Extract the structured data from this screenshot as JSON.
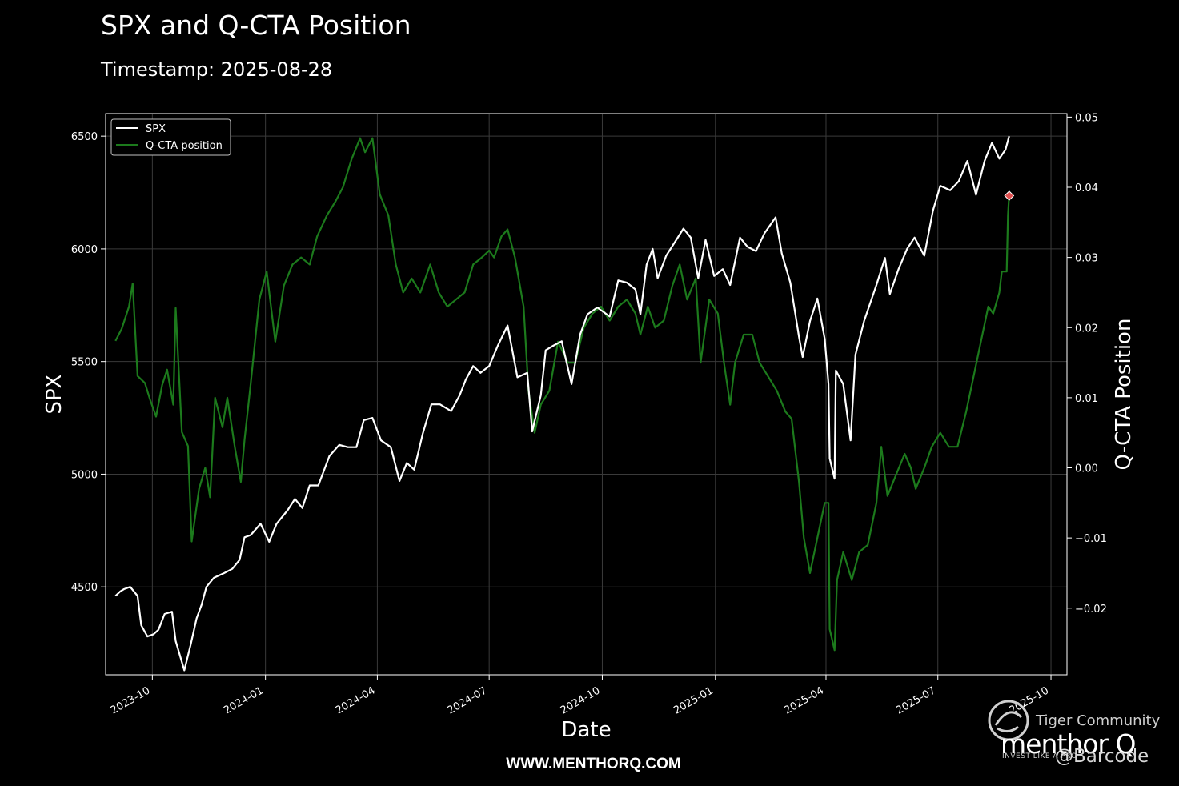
{
  "header": {
    "title": "SPX and Q-CTA Position",
    "subtitle": "Timestamp: 2025-08-28"
  },
  "footer": {
    "url": "WWW.MENTHORQ.COM"
  },
  "watermark": {
    "community": "Tiger Community",
    "brand": "menthor Q",
    "tagline": "INVEST LIKE A PRO",
    "handle": "@Barcode",
    "icon": "tiger-logo-icon"
  },
  "colors": {
    "spx": "#ffffff",
    "cta": "#1c7a1c",
    "marker": "#e05050",
    "background": "#000000"
  },
  "chart_data": {
    "type": "line",
    "xlabel": "Date",
    "ylabel": "SPX",
    "y2label": "Q-CTA Position",
    "xlim": [
      "2023-08-24",
      "2025-10-14"
    ],
    "ylim": [
      4110,
      6600
    ],
    "y2lim": [
      -0.0295,
      0.0505
    ],
    "grid": true,
    "legend": {
      "placement": "top-left",
      "entries": [
        "SPX",
        "Q-CTA position"
      ]
    },
    "x_ticks": [
      "2023-10",
      "2024-01",
      "2024-04",
      "2024-07",
      "2024-10",
      "2025-01",
      "2025-04",
      "2025-07",
      "2025-10"
    ],
    "y_ticks": [
      4500,
      5000,
      5500,
      6000,
      6500
    ],
    "y2_ticks": [
      -0.02,
      -0.01,
      0.0,
      0.01,
      0.02,
      0.03,
      0.04,
      0.05
    ],
    "y2_tick_labels": [
      "−0.02",
      "−0.01",
      "0.00",
      "0.01",
      "0.02",
      "0.03",
      "0.04",
      "0.05"
    ],
    "series": [
      {
        "name": "SPX",
        "axis": "left",
        "points": [
          [
            "2023-09-01",
            4460
          ],
          [
            "2023-09-05",
            4480
          ],
          [
            "2023-09-08",
            4490
          ],
          [
            "2023-09-13",
            4500
          ],
          [
            "2023-09-19",
            4460
          ],
          [
            "2023-09-22",
            4330
          ],
          [
            "2023-09-27",
            4280
          ],
          [
            "2023-10-02",
            4290
          ],
          [
            "2023-10-06",
            4310
          ],
          [
            "2023-10-11",
            4380
          ],
          [
            "2023-10-17",
            4390
          ],
          [
            "2023-10-20",
            4260
          ],
          [
            "2023-10-27",
            4130
          ],
          [
            "2023-11-01",
            4240
          ],
          [
            "2023-11-06",
            4360
          ],
          [
            "2023-11-10",
            4420
          ],
          [
            "2023-11-14",
            4500
          ],
          [
            "2023-11-20",
            4540
          ],
          [
            "2023-11-28",
            4560
          ],
          [
            "2023-12-05",
            4580
          ],
          [
            "2023-12-11",
            4620
          ],
          [
            "2023-12-15",
            4720
          ],
          [
            "2023-12-20",
            4730
          ],
          [
            "2023-12-28",
            4780
          ],
          [
            "2024-01-04",
            4700
          ],
          [
            "2024-01-10",
            4780
          ],
          [
            "2024-01-19",
            4840
          ],
          [
            "2024-01-25",
            4890
          ],
          [
            "2024-01-31",
            4850
          ],
          [
            "2024-02-06",
            4950
          ],
          [
            "2024-02-13",
            4950
          ],
          [
            "2024-02-22",
            5080
          ],
          [
            "2024-03-01",
            5130
          ],
          [
            "2024-03-08",
            5120
          ],
          [
            "2024-03-15",
            5120
          ],
          [
            "2024-03-21",
            5240
          ],
          [
            "2024-03-28",
            5250
          ],
          [
            "2024-04-04",
            5150
          ],
          [
            "2024-04-12",
            5120
          ],
          [
            "2024-04-19",
            4970
          ],
          [
            "2024-04-25",
            5050
          ],
          [
            "2024-05-01",
            5020
          ],
          [
            "2024-05-08",
            5180
          ],
          [
            "2024-05-15",
            5310
          ],
          [
            "2024-05-22",
            5310
          ],
          [
            "2024-05-31",
            5280
          ],
          [
            "2024-06-07",
            5350
          ],
          [
            "2024-06-12",
            5420
          ],
          [
            "2024-06-18",
            5480
          ],
          [
            "2024-06-24",
            5450
          ],
          [
            "2024-07-01",
            5480
          ],
          [
            "2024-07-08",
            5570
          ],
          [
            "2024-07-16",
            5660
          ],
          [
            "2024-07-24",
            5430
          ],
          [
            "2024-08-01",
            5450
          ],
          [
            "2024-08-05",
            5190
          ],
          [
            "2024-08-12",
            5350
          ],
          [
            "2024-08-16",
            5550
          ],
          [
            "2024-08-22",
            5570
          ],
          [
            "2024-08-29",
            5590
          ],
          [
            "2024-09-06",
            5400
          ],
          [
            "2024-09-13",
            5620
          ],
          [
            "2024-09-19",
            5710
          ],
          [
            "2024-09-27",
            5740
          ],
          [
            "2024-10-07",
            5700
          ],
          [
            "2024-10-14",
            5860
          ],
          [
            "2024-10-21",
            5850
          ],
          [
            "2024-10-28",
            5820
          ],
          [
            "2024-11-01",
            5710
          ],
          [
            "2024-11-06",
            5930
          ],
          [
            "2024-11-11",
            6000
          ],
          [
            "2024-11-15",
            5870
          ],
          [
            "2024-11-22",
            5970
          ],
          [
            "2024-11-29",
            6030
          ],
          [
            "2024-12-06",
            6090
          ],
          [
            "2024-12-12",
            6050
          ],
          [
            "2024-12-18",
            5870
          ],
          [
            "2024-12-24",
            6040
          ],
          [
            "2024-12-31",
            5880
          ],
          [
            "2025-01-07",
            5910
          ],
          [
            "2025-01-13",
            5840
          ],
          [
            "2025-01-21",
            6050
          ],
          [
            "2025-01-27",
            6010
          ],
          [
            "2025-02-03",
            5990
          ],
          [
            "2025-02-10",
            6070
          ],
          [
            "2025-02-19",
            6140
          ],
          [
            "2025-02-24",
            5980
          ],
          [
            "2025-03-03",
            5850
          ],
          [
            "2025-03-10",
            5610
          ],
          [
            "2025-03-13",
            5520
          ],
          [
            "2025-03-19",
            5680
          ],
          [
            "2025-03-25",
            5780
          ],
          [
            "2025-03-31",
            5600
          ],
          [
            "2025-04-03",
            5400
          ],
          [
            "2025-04-04",
            5070
          ],
          [
            "2025-04-08",
            4980
          ],
          [
            "2025-04-09",
            5460
          ],
          [
            "2025-04-15",
            5400
          ],
          [
            "2025-04-21",
            5150
          ],
          [
            "2025-04-25",
            5530
          ],
          [
            "2025-05-02",
            5680
          ],
          [
            "2025-05-12",
            5840
          ],
          [
            "2025-05-19",
            5960
          ],
          [
            "2025-05-23",
            5800
          ],
          [
            "2025-05-30",
            5910
          ],
          [
            "2025-06-06",
            6000
          ],
          [
            "2025-06-12",
            6050
          ],
          [
            "2025-06-20",
            5970
          ],
          [
            "2025-06-27",
            6170
          ],
          [
            "2025-07-03",
            6280
          ],
          [
            "2025-07-11",
            6260
          ],
          [
            "2025-07-18",
            6300
          ],
          [
            "2025-07-25",
            6390
          ],
          [
            "2025-08-01",
            6240
          ],
          [
            "2025-08-08",
            6390
          ],
          [
            "2025-08-14",
            6470
          ],
          [
            "2025-08-20",
            6400
          ],
          [
            "2025-08-25",
            6440
          ],
          [
            "2025-08-28",
            6500
          ]
        ]
      },
      {
        "name": "Q-CTA position",
        "axis": "right",
        "points": [
          [
            "2023-09-01",
            0.0181
          ],
          [
            "2023-09-06",
            0.0198
          ],
          [
            "2023-09-12",
            0.023
          ],
          [
            "2023-09-15",
            0.0263
          ],
          [
            "2023-09-19",
            0.0131
          ],
          [
            "2023-09-25",
            0.0121
          ],
          [
            "2023-09-29",
            0.0098
          ],
          [
            "2023-10-04",
            0.0073
          ],
          [
            "2023-10-09",
            0.0118
          ],
          [
            "2023-10-13",
            0.014
          ],
          [
            "2023-10-18",
            0.009
          ],
          [
            "2023-10-20",
            0.0228
          ],
          [
            "2023-10-25",
            0.0051
          ],
          [
            "2023-10-30",
            0.0031
          ],
          [
            "2023-11-02",
            -0.0105
          ],
          [
            "2023-11-08",
            -0.003
          ],
          [
            "2023-11-13",
            0.0
          ],
          [
            "2023-11-17",
            -0.0042
          ],
          [
            "2023-11-21",
            0.01
          ],
          [
            "2023-11-27",
            0.0058
          ],
          [
            "2023-12-01",
            0.01
          ],
          [
            "2023-12-07",
            0.003
          ],
          [
            "2023-12-12",
            -0.002
          ],
          [
            "2023-12-15",
            0.004
          ],
          [
            "2023-12-20",
            0.012
          ],
          [
            "2023-12-27",
            0.024
          ],
          [
            "2024-01-02",
            0.028
          ],
          [
            "2024-01-09",
            0.018
          ],
          [
            "2024-01-16",
            0.026
          ],
          [
            "2024-01-23",
            0.029
          ],
          [
            "2024-01-30",
            0.03
          ],
          [
            "2024-02-06",
            0.029
          ],
          [
            "2024-02-12",
            0.033
          ],
          [
            "2024-02-20",
            0.036
          ],
          [
            "2024-02-27",
            0.038
          ],
          [
            "2024-03-04",
            0.04
          ],
          [
            "2024-03-11",
            0.044
          ],
          [
            "2024-03-18",
            0.047
          ],
          [
            "2024-03-22",
            0.045
          ],
          [
            "2024-03-28",
            0.047
          ],
          [
            "2024-04-03",
            0.039
          ],
          [
            "2024-04-10",
            0.036
          ],
          [
            "2024-04-16",
            0.029
          ],
          [
            "2024-04-22",
            0.025
          ],
          [
            "2024-04-29",
            0.027
          ],
          [
            "2024-05-06",
            0.025
          ],
          [
            "2024-05-14",
            0.029
          ],
          [
            "2024-05-21",
            0.025
          ],
          [
            "2024-05-28",
            0.023
          ],
          [
            "2024-06-04",
            0.024
          ],
          [
            "2024-06-11",
            0.025
          ],
          [
            "2024-06-18",
            0.029
          ],
          [
            "2024-06-25",
            0.03
          ],
          [
            "2024-07-01",
            0.031
          ],
          [
            "2024-07-05",
            0.03
          ],
          [
            "2024-07-11",
            0.033
          ],
          [
            "2024-07-16",
            0.034
          ],
          [
            "2024-07-22",
            0.03
          ],
          [
            "2024-07-29",
            0.023
          ],
          [
            "2024-08-02",
            0.011
          ],
          [
            "2024-08-07",
            0.005
          ],
          [
            "2024-08-12",
            0.009
          ],
          [
            "2024-08-19",
            0.011
          ],
          [
            "2024-08-26",
            0.018
          ],
          [
            "2024-09-03",
            0.015
          ],
          [
            "2024-09-09",
            0.015
          ],
          [
            "2024-09-16",
            0.02
          ],
          [
            "2024-09-23",
            0.022
          ],
          [
            "2024-09-30",
            0.023
          ],
          [
            "2024-10-07",
            0.021
          ],
          [
            "2024-10-14",
            0.023
          ],
          [
            "2024-10-21",
            0.024
          ],
          [
            "2024-10-28",
            0.022
          ],
          [
            "2024-11-01",
            0.019
          ],
          [
            "2024-11-07",
            0.023
          ],
          [
            "2024-11-13",
            0.02
          ],
          [
            "2024-11-20",
            0.021
          ],
          [
            "2024-11-27",
            0.026
          ],
          [
            "2024-12-03",
            0.029
          ],
          [
            "2024-12-09",
            0.024
          ],
          [
            "2024-12-16",
            0.027
          ],
          [
            "2024-12-20",
            0.015
          ],
          [
            "2024-12-27",
            0.024
          ],
          [
            "2025-01-03",
            0.022
          ],
          [
            "2025-01-08",
            0.015
          ],
          [
            "2025-01-13",
            0.009
          ],
          [
            "2025-01-17",
            0.015
          ],
          [
            "2025-01-24",
            0.019
          ],
          [
            "2025-01-31",
            0.019
          ],
          [
            "2025-02-06",
            0.015
          ],
          [
            "2025-02-13",
            0.013
          ],
          [
            "2025-02-20",
            0.011
          ],
          [
            "2025-02-27",
            0.008
          ],
          [
            "2025-03-04",
            0.007
          ],
          [
            "2025-03-10",
            -0.002
          ],
          [
            "2025-03-14",
            -0.01
          ],
          [
            "2025-03-19",
            -0.015
          ],
          [
            "2025-03-25",
            -0.01
          ],
          [
            "2025-03-31",
            -0.005
          ],
          [
            "2025-04-03",
            -0.005
          ],
          [
            "2025-04-04",
            -0.023
          ],
          [
            "2025-04-08",
            -0.026
          ],
          [
            "2025-04-10",
            -0.016
          ],
          [
            "2025-04-15",
            -0.012
          ],
          [
            "2025-04-22",
            -0.016
          ],
          [
            "2025-04-28",
            -0.012
          ],
          [
            "2025-05-05",
            -0.011
          ],
          [
            "2025-05-12",
            -0.005
          ],
          [
            "2025-05-16",
            0.003
          ],
          [
            "2025-05-21",
            -0.004
          ],
          [
            "2025-05-28",
            -0.001
          ],
          [
            "2025-06-04",
            0.002
          ],
          [
            "2025-06-09",
            0.0
          ],
          [
            "2025-06-13",
            -0.003
          ],
          [
            "2025-06-20",
            0.0
          ],
          [
            "2025-06-26",
            0.003
          ],
          [
            "2025-07-03",
            0.005
          ],
          [
            "2025-07-10",
            0.003
          ],
          [
            "2025-07-17",
            0.003
          ],
          [
            "2025-07-24",
            0.008
          ],
          [
            "2025-07-30",
            0.013
          ],
          [
            "2025-08-05",
            0.018
          ],
          [
            "2025-08-11",
            0.023
          ],
          [
            "2025-08-15",
            0.022
          ],
          [
            "2025-08-20",
            0.025
          ],
          [
            "2025-08-22",
            0.028
          ],
          [
            "2025-08-26",
            0.028
          ],
          [
            "2025-08-27",
            0.036
          ],
          [
            "2025-08-28",
            0.039
          ]
        ]
      }
    ],
    "marker": {
      "date": "2025-08-28",
      "value": 0.0388,
      "axis": "right"
    }
  }
}
